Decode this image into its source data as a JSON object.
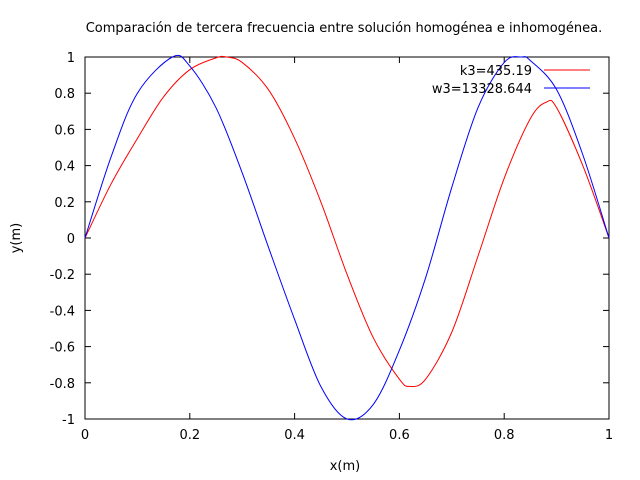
{
  "chart_data": {
    "type": "line",
    "title": "Comparación de tercera frecuencia entre solución homogénea e inhomogénea.",
    "xlabel": "x(m)",
    "ylabel": "y(m)",
    "xlim": [
      0,
      1
    ],
    "ylim": [
      -1,
      1
    ],
    "xticks": [
      "0",
      "0.2",
      "0.4",
      "0.6",
      "0.8",
      "1"
    ],
    "yticks": [
      "-1",
      "-0.8",
      "-0.6",
      "-0.4",
      "-0.2",
      "0",
      "0.2",
      "0.4",
      "0.6",
      "0.8",
      "1"
    ],
    "grid": false,
    "legend_position": "top-right",
    "series": [
      {
        "name": "k3=435.19",
        "color": "#ff0000",
        "x": [
          0,
          0.05,
          0.1,
          0.15,
          0.2,
          0.25,
          0.27,
          0.3,
          0.35,
          0.4,
          0.45,
          0.5,
          0.55,
          0.6,
          0.62,
          0.65,
          0.7,
          0.75,
          0.8,
          0.85,
          0.88,
          0.9,
          0.95,
          1.0
        ],
        "y": [
          0,
          0.3,
          0.55,
          0.78,
          0.93,
          0.995,
          1.0,
          0.97,
          0.82,
          0.55,
          0.2,
          -0.2,
          -0.55,
          -0.78,
          -0.82,
          -0.78,
          -0.52,
          -0.1,
          0.33,
          0.66,
          0.75,
          0.72,
          0.4,
          0
        ]
      },
      {
        "name": "w3=13328.644",
        "color": "#0000ff",
        "x": [
          0,
          0.05,
          0.1,
          0.1667,
          0.2,
          0.25,
          0.3,
          0.35,
          0.4,
          0.45,
          0.5,
          0.55,
          0.6,
          0.65,
          0.7,
          0.75,
          0.8,
          0.8333,
          0.85,
          0.9,
          0.95,
          1.0
        ],
        "y": [
          0,
          0.45,
          0.8,
          1.0,
          0.95,
          0.72,
          0.36,
          -0.05,
          -0.45,
          -0.82,
          -1.0,
          -0.92,
          -0.62,
          -0.22,
          0.28,
          0.72,
          0.97,
          1.0,
          0.98,
          0.82,
          0.46,
          0
        ]
      }
    ]
  }
}
